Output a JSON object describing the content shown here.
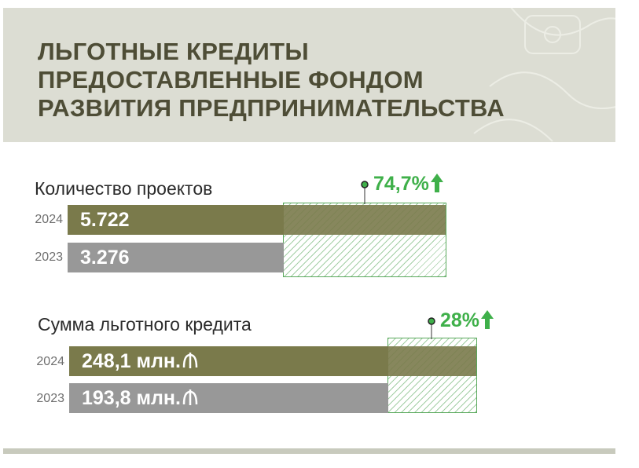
{
  "header": {
    "title_lines": [
      "ЛЬГОТНЫЕ КРЕДИТЫ",
      "ПРЕДОСТАВЛЕННЫЕ ФОНДОМ",
      "РАЗВИТИЯ ПРЕДПРИНИМАТЕЛЬСТВА"
    ]
  },
  "colors": {
    "bar_current": "#7a7a4b",
    "bar_previous": "#989898",
    "growth_green": "#3fb04a",
    "title_color": "#4e4d36"
  },
  "icons": {
    "growth": "arrow-up-icon",
    "currency": "som-currency-icon",
    "pin": "pin-marker-icon"
  },
  "chart_data": [
    {
      "type": "bar",
      "orientation": "horizontal",
      "title": "Количество проектов",
      "categories": [
        "2024",
        "2023"
      ],
      "values": [
        5722,
        3276
      ],
      "value_labels": [
        "5.722",
        "3.276"
      ],
      "unit": "",
      "growth_label": "74,7%"
    },
    {
      "type": "bar",
      "orientation": "horizontal",
      "title": "Сумма льготного кредита",
      "categories": [
        "2024",
        "2023"
      ],
      "values": [
        248.1,
        193.8
      ],
      "value_labels": [
        "248,1 млн.",
        "193,8 млн."
      ],
      "unit": "млн.",
      "growth_label": "28%"
    }
  ]
}
